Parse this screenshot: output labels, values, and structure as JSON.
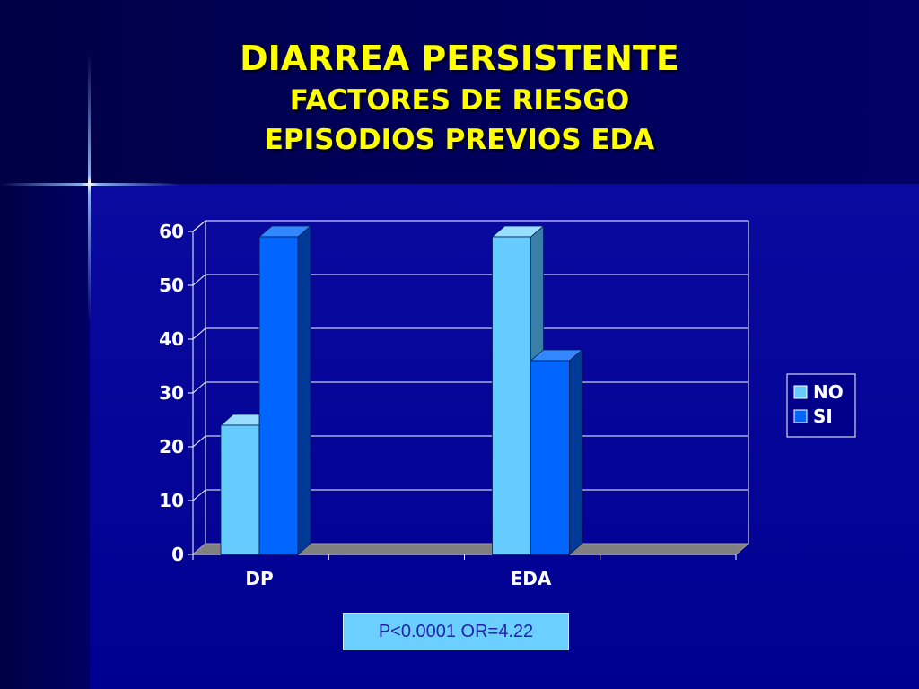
{
  "title": {
    "line1": "DIARREA PERSISTENTE",
    "line2": "FACTORES DE RIESGO",
    "line3": "EPISODIOS PREVIOS EDA"
  },
  "stat_label": "P<0.0001 OR=4.22",
  "colors": {
    "background": "#00008a",
    "title": "#ffff00",
    "series_no": "#66ccff",
    "series_si": "#0066ff",
    "stat_box": "#6bcfff"
  },
  "chart_data": {
    "type": "bar",
    "categories": [
      "DP",
      "EDA"
    ],
    "series": [
      {
        "name": "NO",
        "values": [
          24,
          59
        ]
      },
      {
        "name": "SI",
        "values": [
          59,
          36
        ]
      }
    ],
    "ylim": [
      0,
      60
    ],
    "yticks": [
      0,
      10,
      20,
      30,
      40,
      50,
      60
    ],
    "title": "",
    "xlabel": "",
    "ylabel": "",
    "grid": true,
    "legend": "right",
    "style": "3d"
  }
}
